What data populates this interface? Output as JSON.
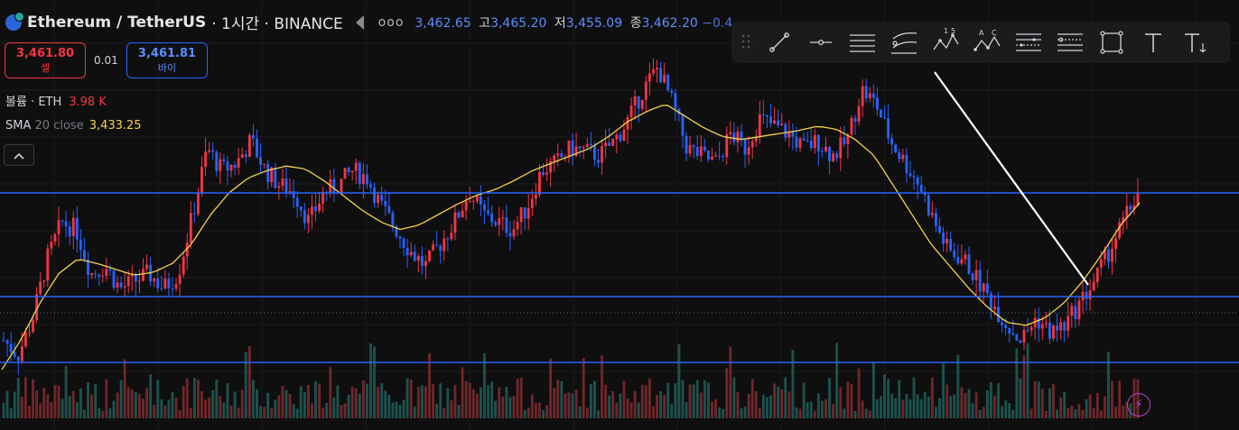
{
  "header": {
    "symbol": "Ethereum",
    "separator": " / ",
    "quote": "TetherUS",
    "meta": "· 1시간 · BINANCE",
    "more": "ooo",
    "ohlc": {
      "open_value": "3,462.65",
      "high_label": "고",
      "high_value": "3,465.20",
      "low_label": "저",
      "low_value": "3,455.09",
      "close_label": "종",
      "close_value": "3,462.20",
      "change": "−0.4"
    }
  },
  "trade": {
    "sell_price": "3,461.80",
    "sell_label": "셀",
    "spread": "0.01",
    "buy_price": "3,461.81",
    "buy_label": "바이"
  },
  "indicators": {
    "volume_label": "볼륨 · ETH",
    "volume_value": "3.98 K",
    "sma_name": "SMA",
    "sma_params": "20 close",
    "sma_value": "3,433.25"
  },
  "collapse_icon": "chevron-up",
  "toolbar": {
    "tools": [
      "trend-line",
      "ray",
      "parallel-channel",
      "regression-trend",
      "xabcd-pattern",
      "abcd-pattern",
      "fib-retracement",
      "fib-extension",
      "rectangle",
      "text",
      "anchored-text"
    ],
    "tool_labels": [
      "1",
      "5",
      "A",
      "C"
    ]
  },
  "colors": {
    "up": "#f23645",
    "down": "#2962ff",
    "sma": "#f5d24a",
    "hline": "#2962ff",
    "trend": "#ffffff"
  },
  "chart_data": {
    "type": "candlestick",
    "series_shape": [
      3340,
      3330,
      3355,
      3395,
      3420,
      3415,
      3385,
      3390,
      3375,
      3380,
      3385,
      3375,
      3385,
      3425,
      3470,
      3455,
      3460,
      3475,
      3455,
      3445,
      3440,
      3420,
      3440,
      3445,
      3455,
      3450,
      3430,
      3415,
      3400,
      3390,
      3405,
      3420,
      3440,
      3425,
      3420,
      3415,
      3430,
      3455,
      3460,
      3470,
      3468,
      3465,
      3475,
      3490,
      3510,
      3525,
      3500,
      3470,
      3465,
      3460,
      3480,
      3470,
      3490,
      3485,
      3480,
      3470,
      3475,
      3465,
      3475,
      3510,
      3500,
      3475,
      3460,
      3445,
      3420,
      3400,
      3395,
      3380,
      3365,
      3350,
      3340,
      3355,
      3345,
      3350,
      3365,
      3380,
      3400,
      3420,
      3440
    ],
    "sma_shape": [
      3320,
      3340,
      3365,
      3385,
      3395,
      3392,
      3388,
      3384,
      3386,
      3392,
      3405,
      3425,
      3440,
      3450,
      3455,
      3458,
      3456,
      3448,
      3438,
      3428,
      3420,
      3415,
      3418,
      3425,
      3432,
      3438,
      3442,
      3448,
      3455,
      3460,
      3465,
      3470,
      3478,
      3488,
      3495,
      3500,
      3492,
      3484,
      3478,
      3476,
      3478,
      3480,
      3482,
      3485,
      3483,
      3476,
      3465,
      3445,
      3425,
      3405,
      3390,
      3375,
      3362,
      3352,
      3350,
      3355,
      3365,
      3380,
      3398,
      3418,
      3433
    ],
    "horizontal_levels": [
      3420,
      3370,
      3337
    ],
    "last_price": 3462.2
  }
}
